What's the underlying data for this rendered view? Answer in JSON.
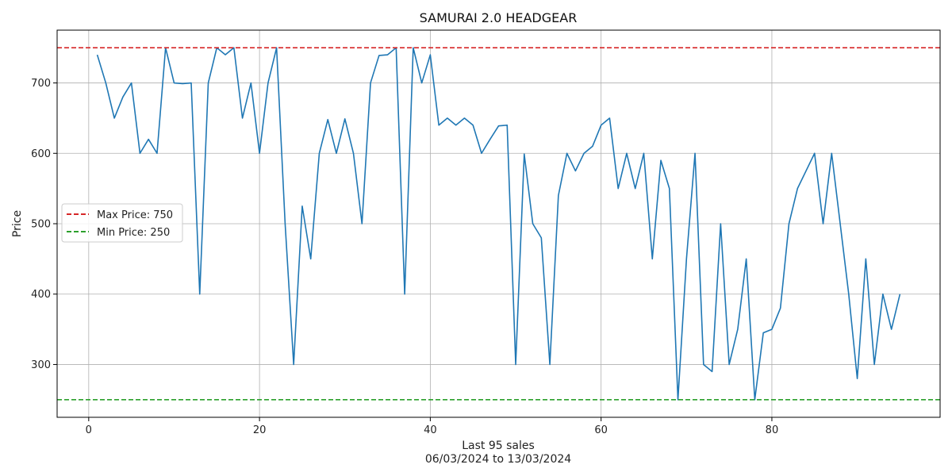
{
  "chart_data": {
    "type": "line",
    "title": "SAMURAI 2.0 HEADGEAR",
    "xlabel": "Last 95 sales",
    "xlabel_sub": "06/03/2024 to 13/03/2024",
    "ylabel": "Price",
    "xlim": [
      -3.7,
      99.7
    ],
    "ylim": [
      225,
      775
    ],
    "xticks": [
      0,
      20,
      40,
      60,
      80
    ],
    "yticks": [
      300,
      400,
      500,
      600,
      700
    ],
    "grid": true,
    "legend_position": "center-left",
    "series": [
      {
        "name": "Price",
        "color": "#1f77b4",
        "x": [
          1,
          2,
          3,
          4,
          5,
          6,
          7,
          8,
          9,
          10,
          11,
          12,
          13,
          14,
          15,
          16,
          17,
          18,
          19,
          20,
          21,
          22,
          23,
          24,
          25,
          26,
          27,
          28,
          29,
          30,
          31,
          32,
          33,
          34,
          35,
          36,
          37,
          38,
          39,
          40,
          41,
          42,
          43,
          44,
          45,
          46,
          47,
          48,
          49,
          50,
          51,
          52,
          53,
          54,
          55,
          56,
          57,
          58,
          59,
          60,
          61,
          62,
          63,
          64,
          65,
          66,
          67,
          68,
          69,
          70,
          71,
          72,
          73,
          74,
          75,
          76,
          77,
          78,
          79,
          80,
          81,
          82,
          83,
          84,
          85,
          86,
          87,
          88,
          89,
          90,
          91,
          92,
          93,
          94,
          95
        ],
        "values": [
          740,
          700,
          650,
          680,
          700,
          600,
          620,
          600,
          750,
          700,
          699,
          700,
          400,
          700,
          750,
          740,
          750,
          650,
          700,
          600,
          700,
          750,
          500,
          300,
          525,
          450,
          600,
          648,
          600,
          649,
          600,
          500,
          700,
          739,
          740,
          750,
          400,
          750,
          700,
          740,
          640,
          650,
          640,
          650,
          640,
          600,
          620,
          639,
          640,
          300,
          599,
          500,
          480,
          300,
          540,
          600,
          575,
          600,
          610,
          640,
          650,
          550,
          600,
          550,
          600,
          450,
          590,
          550,
          250,
          450,
          600,
          300,
          290,
          500,
          300,
          350,
          450,
          250,
          345,
          350,
          380,
          500,
          550,
          575,
          600,
          500,
          600,
          500,
          400,
          280,
          450,
          300,
          400,
          350,
          400
        ]
      }
    ],
    "reference_lines": [
      {
        "label": "Max Price: 750",
        "value": 750,
        "color": "#d62728",
        "style": "dashed"
      },
      {
        "label": "Min Price: 250",
        "value": 250,
        "color": "#2ca02c",
        "style": "dashed"
      }
    ]
  }
}
